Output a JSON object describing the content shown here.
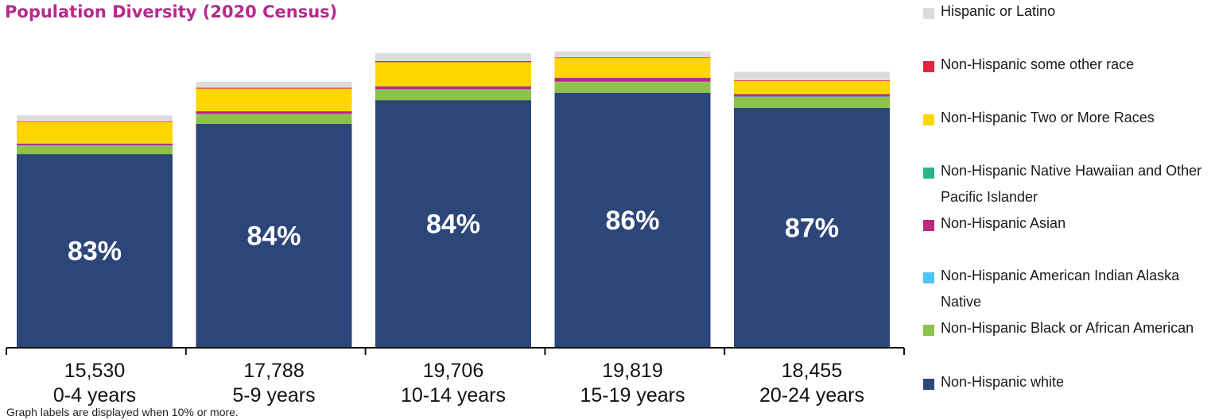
{
  "chart_data": {
    "type": "bar",
    "stacked": true,
    "title": "Population Diversity (2020 Census)",
    "categories": [
      "0-4 years",
      "5-9 years",
      "10-14 years",
      "15-19 years",
      "20-24 years"
    ],
    "totals": [
      "15,530",
      "17,788",
      "19,706",
      "19,819",
      "18,455"
    ],
    "bar_labels": [
      "83%",
      "84%",
      "84%",
      "86%",
      "87%"
    ],
    "ylim": [
      0,
      20600
    ],
    "grid": false,
    "legend_position": "right",
    "footnote": "Graph labels are displayed when 10% or more.",
    "series": [
      {
        "name": "Non-Hispanic white",
        "color": "#2c4679",
        "values": [
          12930,
          14966,
          16548,
          17047,
          16030
        ]
      },
      {
        "name": "Non-Hispanic Black or African American",
        "color": "#8bc34a",
        "values": [
          560,
          637,
          710,
          720,
          745
        ]
      },
      {
        "name": "Non-Hispanic American Indian Alaska Native",
        "color": "#4fc3f7",
        "values": [
          20,
          22,
          20,
          20,
          20
        ]
      },
      {
        "name": "Non-Hispanic Asian",
        "color": "#c1267f",
        "values": [
          120,
          175,
          195,
          260,
          160
        ]
      },
      {
        "name": "Non-Hispanic Native Hawaiian and Other Pacific Islander",
        "color": "#2bb38a",
        "values": [
          10,
          10,
          10,
          10,
          10
        ]
      },
      {
        "name": "Non-Hispanic Two or More Races",
        "color": "#ffd600",
        "values": [
          1450,
          1510,
          1605,
          1317,
          880
        ]
      },
      {
        "name": "Non-Hispanic some other race",
        "color": "#e0263c",
        "values": [
          40,
          58,
          78,
          45,
          40
        ]
      },
      {
        "name": "Hispanic or Latino",
        "color": "#dcdcdc",
        "values": [
          400,
          410,
          540,
          400,
          570
        ]
      }
    ]
  },
  "legend": {
    "items": [
      {
        "label": "Hispanic or Latino",
        "color": "#dcdcdc"
      },
      {
        "label": "Non-Hispanic some other race",
        "color": "#e0263c"
      },
      {
        "label": "Non-Hispanic Two or More Races",
        "color": "#ffd600"
      },
      {
        "label": "Non-Hispanic Native Hawaiian and Other Pacific Islander",
        "color": "#2bb38a"
      },
      {
        "label": "Non-Hispanic Asian",
        "color": "#c1267f"
      },
      {
        "label": "Non-Hispanic American Indian Alaska Native",
        "color": "#4fc3f7"
      },
      {
        "label": "Non-Hispanic Black or African American",
        "color": "#8bc34a"
      },
      {
        "label": "Non-Hispanic white",
        "color": "#2c4679"
      }
    ]
  }
}
